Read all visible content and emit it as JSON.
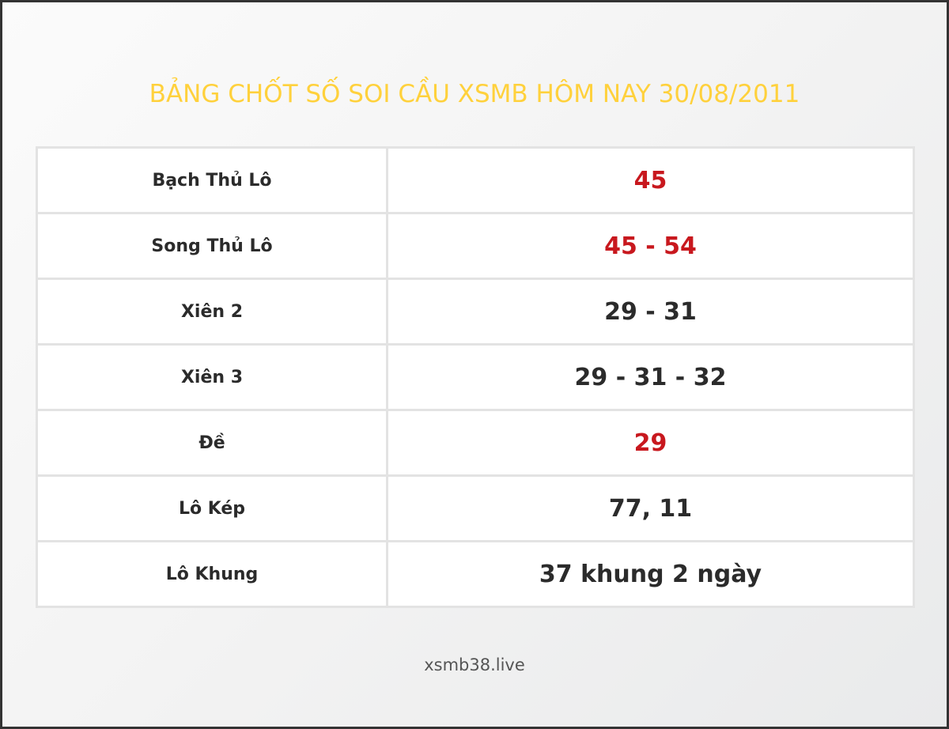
{
  "title": "BẢNG CHỐT SỐ SOI CẦU XSMB HÔM NAY 30/08/2011",
  "colors": {
    "title": "#ffd13c",
    "highlight": "#c8181e",
    "text": "#2b2b2b"
  },
  "rows": [
    {
      "label": "Bạch Thủ Lô",
      "value": "45",
      "highlight": true
    },
    {
      "label": "Song Thủ Lô",
      "value": "45 - 54",
      "highlight": true
    },
    {
      "label": "Xiên 2",
      "value": "29 - 31",
      "highlight": false
    },
    {
      "label": "Xiên 3",
      "value": "29 - 31 - 32",
      "highlight": false
    },
    {
      "label": "Đề",
      "value": "29",
      "highlight": true
    },
    {
      "label": "Lô Kép",
      "value": "77, 11",
      "highlight": false
    },
    {
      "label": "Lô Khung",
      "value": "37 khung 2 ngày",
      "highlight": false
    }
  ],
  "footer": "xsmb38.live"
}
